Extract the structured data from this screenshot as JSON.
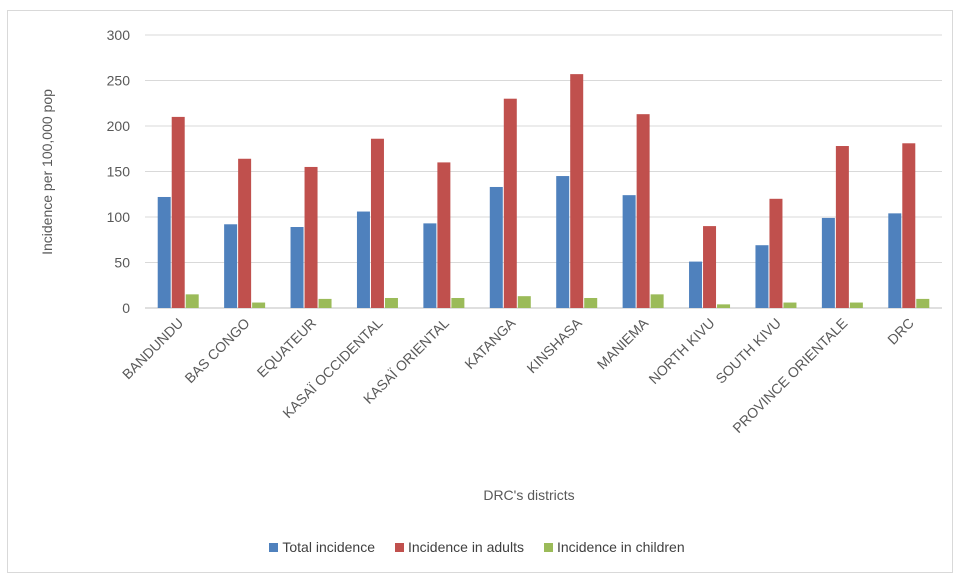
{
  "chart_data": {
    "type": "bar",
    "title": "",
    "xlabel": "DRC's districts",
    "ylabel": "Incidence per 100,000 pop",
    "ylim": [
      0,
      300
    ],
    "yticks": [
      0,
      50,
      100,
      150,
      200,
      250,
      300
    ],
    "grid": true,
    "legend_position": "bottom",
    "categories": [
      "BANDUNDU",
      "BAS CONGO",
      "EQUATEUR",
      "KASAÏ OCCIDENTAL",
      "KASAÏ ORIENTAL",
      "KATANGA",
      "KINSHASA",
      "MANIEMA",
      "NORTH KIVU",
      "SOUTH KIVU",
      "PROVINCE ORIENTALE",
      "DRC"
    ],
    "series": [
      {
        "name": "Total incidence",
        "color": "#4f81bd",
        "values": [
          122,
          92,
          89,
          106,
          93,
          133,
          145,
          124,
          51,
          69,
          99,
          104
        ]
      },
      {
        "name": "Incidence in adults",
        "color": "#c0504d",
        "values": [
          210,
          164,
          155,
          186,
          160,
          230,
          257,
          213,
          90,
          120,
          178,
          181
        ]
      },
      {
        "name": "Incidence in children",
        "color": "#9bbb59",
        "values": [
          15,
          6,
          10,
          11,
          11,
          13,
          11,
          15,
          4,
          6,
          6,
          10
        ]
      }
    ]
  }
}
